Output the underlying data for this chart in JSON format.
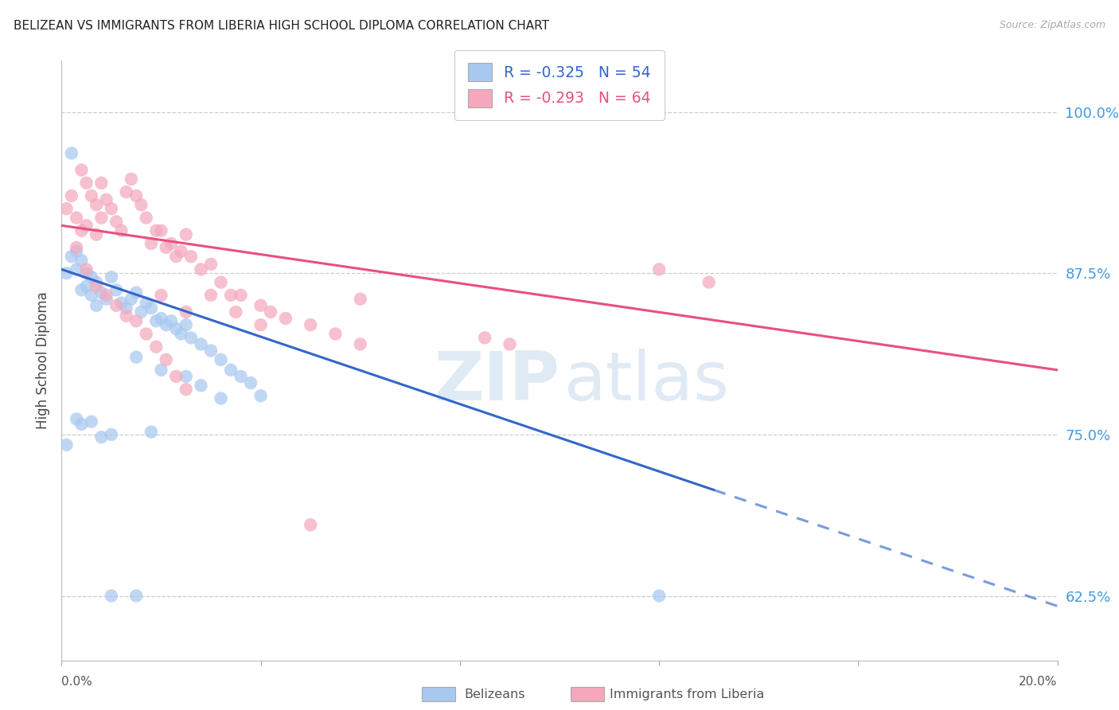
{
  "title": "BELIZEAN VS IMMIGRANTS FROM LIBERIA HIGH SCHOOL DIPLOMA CORRELATION CHART",
  "source": "Source: ZipAtlas.com",
  "ylabel": "High School Diploma",
  "ytick_labels": [
    "62.5%",
    "75.0%",
    "87.5%",
    "100.0%"
  ],
  "ytick_values": [
    0.625,
    0.75,
    0.875,
    1.0
  ],
  "xlim": [
    0.0,
    0.2
  ],
  "ylim": [
    0.575,
    1.04
  ],
  "legend_blue_r": "-0.325",
  "legend_blue_n": "54",
  "legend_pink_r": "-0.293",
  "legend_pink_n": "64",
  "blue_color": "#A8C8F0",
  "pink_color": "#F5A8BC",
  "blue_line_color": "#3366CC",
  "pink_line_color": "#E85080",
  "background_color": "#FFFFFF",
  "blue_line_x0": 0.0,
  "blue_line_y0": 0.878,
  "blue_line_x1": 0.2,
  "blue_line_y1": 0.617,
  "blue_line_solid_end": 0.131,
  "pink_line_x0": 0.0,
  "pink_line_y0": 0.912,
  "pink_line_x1": 0.2,
  "pink_line_y1": 0.8,
  "blue_scatter_x": [
    0.001,
    0.002,
    0.003,
    0.003,
    0.004,
    0.004,
    0.005,
    0.005,
    0.006,
    0.006,
    0.007,
    0.007,
    0.008,
    0.009,
    0.01,
    0.011,
    0.012,
    0.013,
    0.014,
    0.015,
    0.016,
    0.017,
    0.018,
    0.019,
    0.02,
    0.021,
    0.022,
    0.023,
    0.024,
    0.025,
    0.026,
    0.028,
    0.03,
    0.032,
    0.034,
    0.036,
    0.038,
    0.015,
    0.02,
    0.025,
    0.028,
    0.032,
    0.018,
    0.01,
    0.008,
    0.006,
    0.004,
    0.003,
    0.002,
    0.001,
    0.04,
    0.01,
    0.015,
    0.12
  ],
  "blue_scatter_y": [
    0.875,
    0.888,
    0.878,
    0.892,
    0.862,
    0.885,
    0.865,
    0.875,
    0.858,
    0.872,
    0.85,
    0.868,
    0.86,
    0.855,
    0.872,
    0.862,
    0.852,
    0.848,
    0.855,
    0.86,
    0.845,
    0.852,
    0.848,
    0.838,
    0.84,
    0.835,
    0.838,
    0.832,
    0.828,
    0.835,
    0.825,
    0.82,
    0.815,
    0.808,
    0.8,
    0.795,
    0.79,
    0.81,
    0.8,
    0.795,
    0.788,
    0.778,
    0.752,
    0.75,
    0.748,
    0.76,
    0.758,
    0.762,
    0.968,
    0.742,
    0.78,
    0.625,
    0.625,
    0.625
  ],
  "pink_scatter_x": [
    0.001,
    0.002,
    0.003,
    0.004,
    0.004,
    0.005,
    0.005,
    0.006,
    0.007,
    0.007,
    0.008,
    0.008,
    0.009,
    0.01,
    0.011,
    0.012,
    0.013,
    0.014,
    0.015,
    0.016,
    0.017,
    0.018,
    0.019,
    0.02,
    0.021,
    0.022,
    0.023,
    0.024,
    0.025,
    0.026,
    0.028,
    0.03,
    0.032,
    0.034,
    0.036,
    0.04,
    0.042,
    0.045,
    0.05,
    0.055,
    0.06,
    0.003,
    0.005,
    0.007,
    0.009,
    0.011,
    0.013,
    0.015,
    0.017,
    0.019,
    0.021,
    0.023,
    0.025,
    0.03,
    0.035,
    0.04,
    0.02,
    0.025,
    0.085,
    0.12,
    0.13,
    0.05,
    0.06,
    0.09
  ],
  "pink_scatter_y": [
    0.925,
    0.935,
    0.918,
    0.955,
    0.908,
    0.945,
    0.912,
    0.935,
    0.928,
    0.905,
    0.945,
    0.918,
    0.932,
    0.925,
    0.915,
    0.908,
    0.938,
    0.948,
    0.935,
    0.928,
    0.918,
    0.898,
    0.908,
    0.908,
    0.895,
    0.898,
    0.888,
    0.892,
    0.905,
    0.888,
    0.878,
    0.882,
    0.868,
    0.858,
    0.858,
    0.85,
    0.845,
    0.84,
    0.835,
    0.828,
    0.82,
    0.895,
    0.878,
    0.865,
    0.858,
    0.85,
    0.842,
    0.838,
    0.828,
    0.818,
    0.808,
    0.795,
    0.785,
    0.858,
    0.845,
    0.835,
    0.858,
    0.845,
    0.825,
    0.878,
    0.868,
    0.68,
    0.855,
    0.82
  ]
}
